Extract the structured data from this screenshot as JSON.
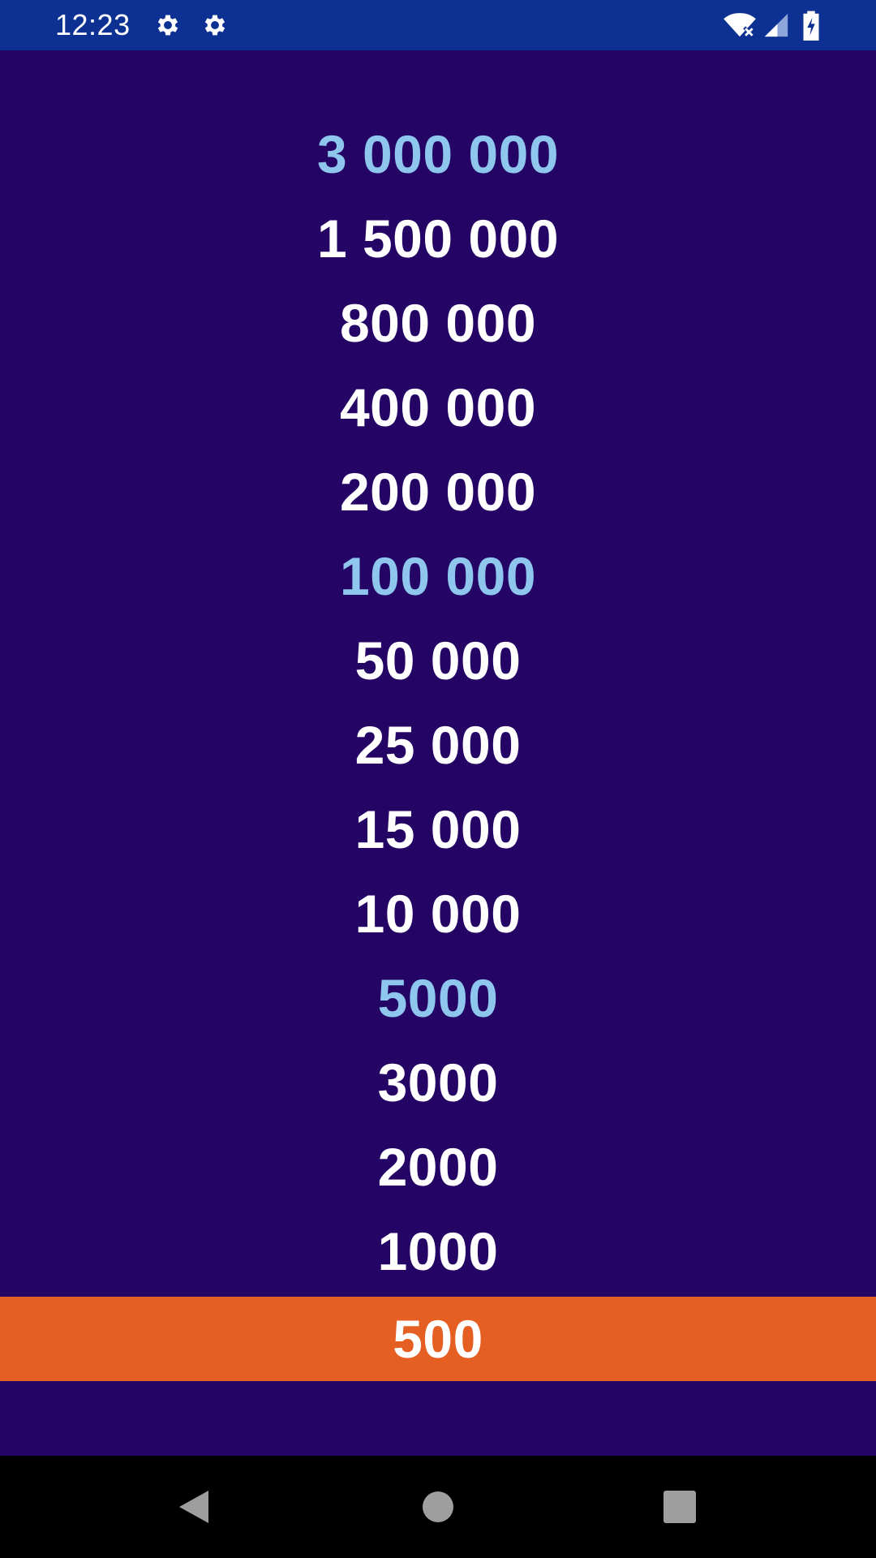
{
  "status_bar": {
    "time": "12:23",
    "background": "#0D3192",
    "left_icons": [
      "settings-gear-icon",
      "settings-gear-icon"
    ],
    "right_icons": [
      "wifi-off-icon",
      "cell-signal-icon",
      "battery-charging-icon"
    ]
  },
  "prize_ladder": {
    "background": "#240566",
    "text_color": "#ffffff",
    "milestone_color": "#8FC6EE",
    "current_color": "#E55E22",
    "items": [
      {
        "label": "3 000 000",
        "milestone": true
      },
      {
        "label": "1 500 000",
        "milestone": false
      },
      {
        "label": "800 000",
        "milestone": false
      },
      {
        "label": "400 000",
        "milestone": false
      },
      {
        "label": "200 000",
        "milestone": false
      },
      {
        "label": "100 000",
        "milestone": true
      },
      {
        "label": "50 000",
        "milestone": false
      },
      {
        "label": "25 000",
        "milestone": false
      },
      {
        "label": "15 000",
        "milestone": false
      },
      {
        "label": "10 000",
        "milestone": false
      },
      {
        "label": "5000",
        "milestone": true
      },
      {
        "label": "3000",
        "milestone": false
      },
      {
        "label": "2000",
        "milestone": false
      },
      {
        "label": "1000",
        "milestone": false
      },
      {
        "label": "500",
        "milestone": false,
        "current": true
      }
    ]
  },
  "nav_bar": {
    "buttons": [
      "back-icon",
      "home-icon",
      "recents-icon"
    ]
  }
}
